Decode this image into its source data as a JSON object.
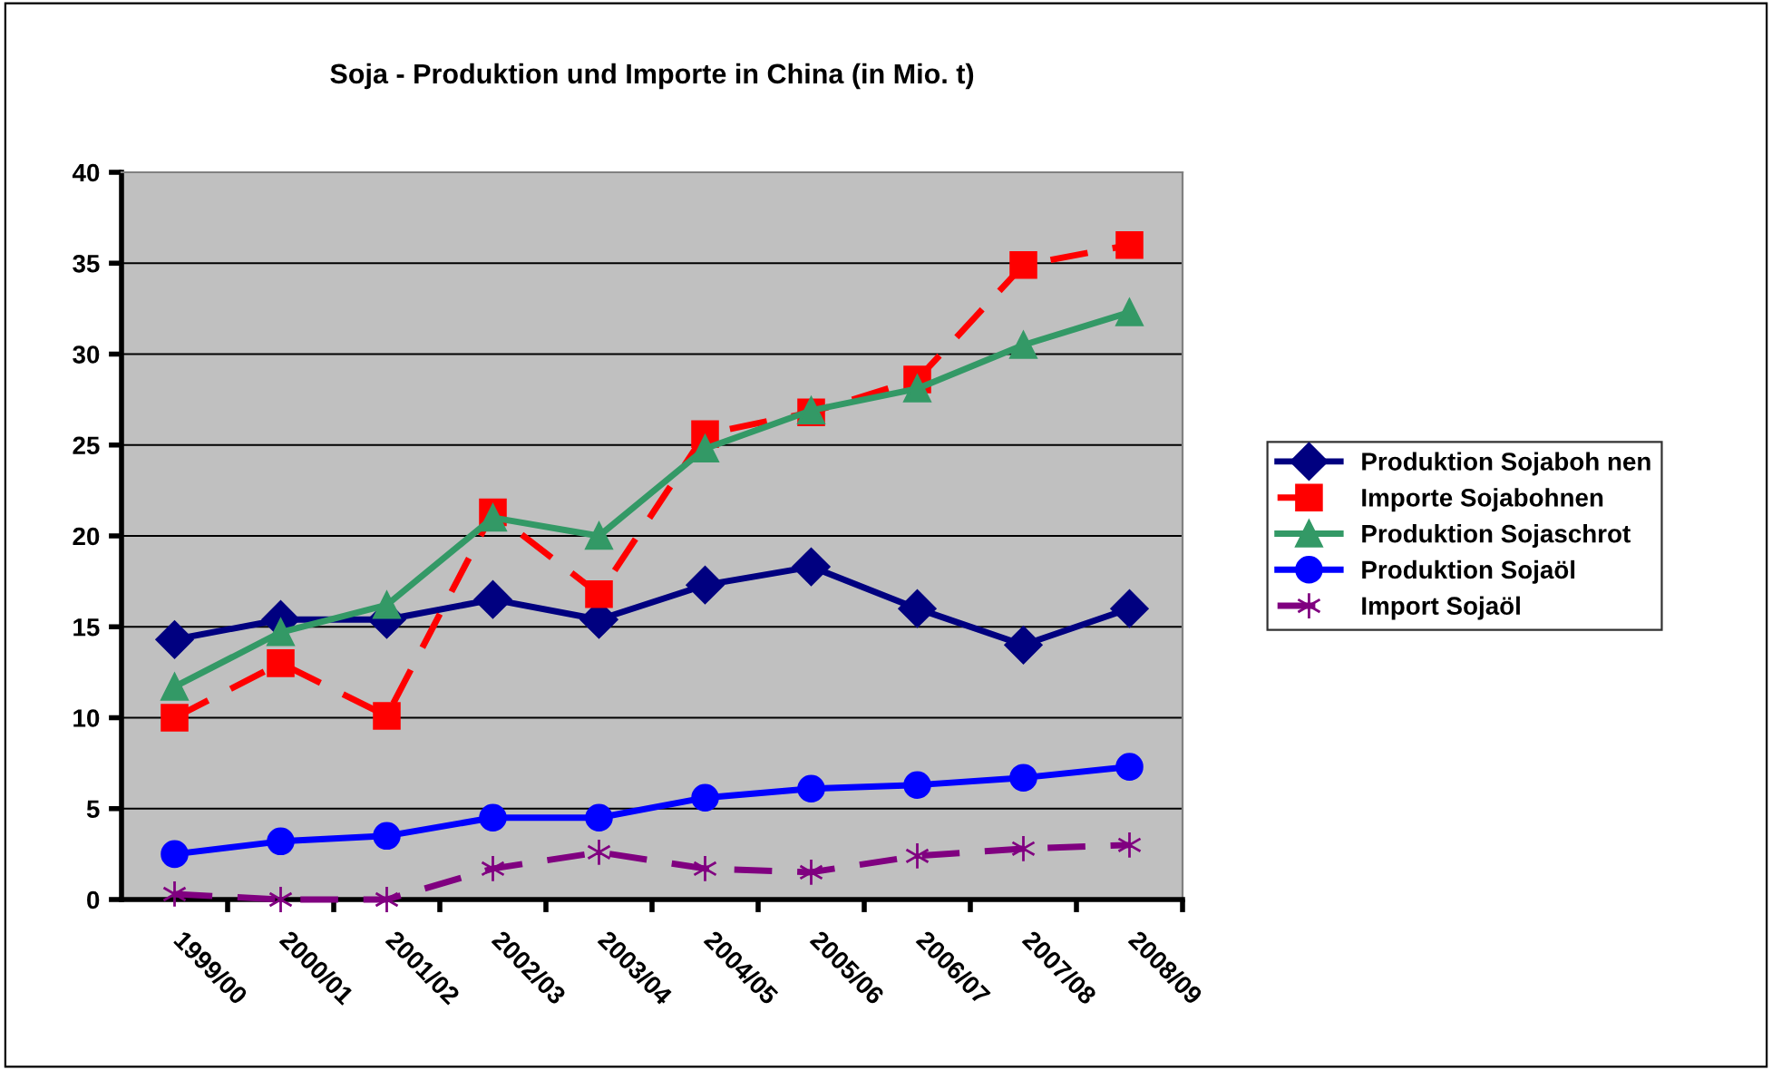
{
  "chart_data": {
    "type": "line",
    "title": "Soja - Produktion und Importe in China (in Mio. t)",
    "categories": [
      "1999/00",
      "2000/01",
      "2001/02",
      "2002/03",
      "2003/04",
      "2004/05",
      "2005/06",
      "2006/07",
      "2007/08",
      "2008/09"
    ],
    "series": [
      {
        "name": "Produktion Sojaboh nen",
        "color": "#000080",
        "marker": "diamond",
        "line_style": "solid",
        "values": [
          14.3,
          15.4,
          15.4,
          16.5,
          15.4,
          17.3,
          18.3,
          16.0,
          14.0,
          16.0
        ]
      },
      {
        "name": "Importe Sojabohnen",
        "color": "#ff0000",
        "marker": "square",
        "line_style": "dashed",
        "values": [
          10.0,
          13.0,
          10.1,
          21.3,
          16.8,
          25.6,
          26.8,
          28.6,
          34.9,
          36.0
        ]
      },
      {
        "name": "Produktion Sojaschrot",
        "color": "#339966",
        "marker": "triangle",
        "line_style": "solid",
        "values": [
          11.7,
          14.7,
          16.2,
          21.0,
          20.0,
          24.8,
          26.9,
          28.1,
          30.5,
          32.3
        ]
      },
      {
        "name": "Produktion Sojaöl",
        "color": "#0000ff",
        "marker": "circle",
        "line_style": "solid",
        "values": [
          2.5,
          3.2,
          3.5,
          4.5,
          4.5,
          5.6,
          6.1,
          6.3,
          6.7,
          7.3
        ]
      },
      {
        "name": "Import Sojaöl",
        "color": "#800080",
        "marker": "cross",
        "line_style": "dashed",
        "values": [
          0.3,
          0.0,
          0.0,
          1.7,
          2.6,
          1.7,
          1.5,
          2.4,
          2.8,
          3.0
        ]
      }
    ],
    "ylim": [
      0,
      40
    ],
    "yticks": [
      0,
      5,
      10,
      15,
      20,
      25,
      30,
      35,
      40
    ],
    "grid": "y",
    "legend": "right"
  }
}
